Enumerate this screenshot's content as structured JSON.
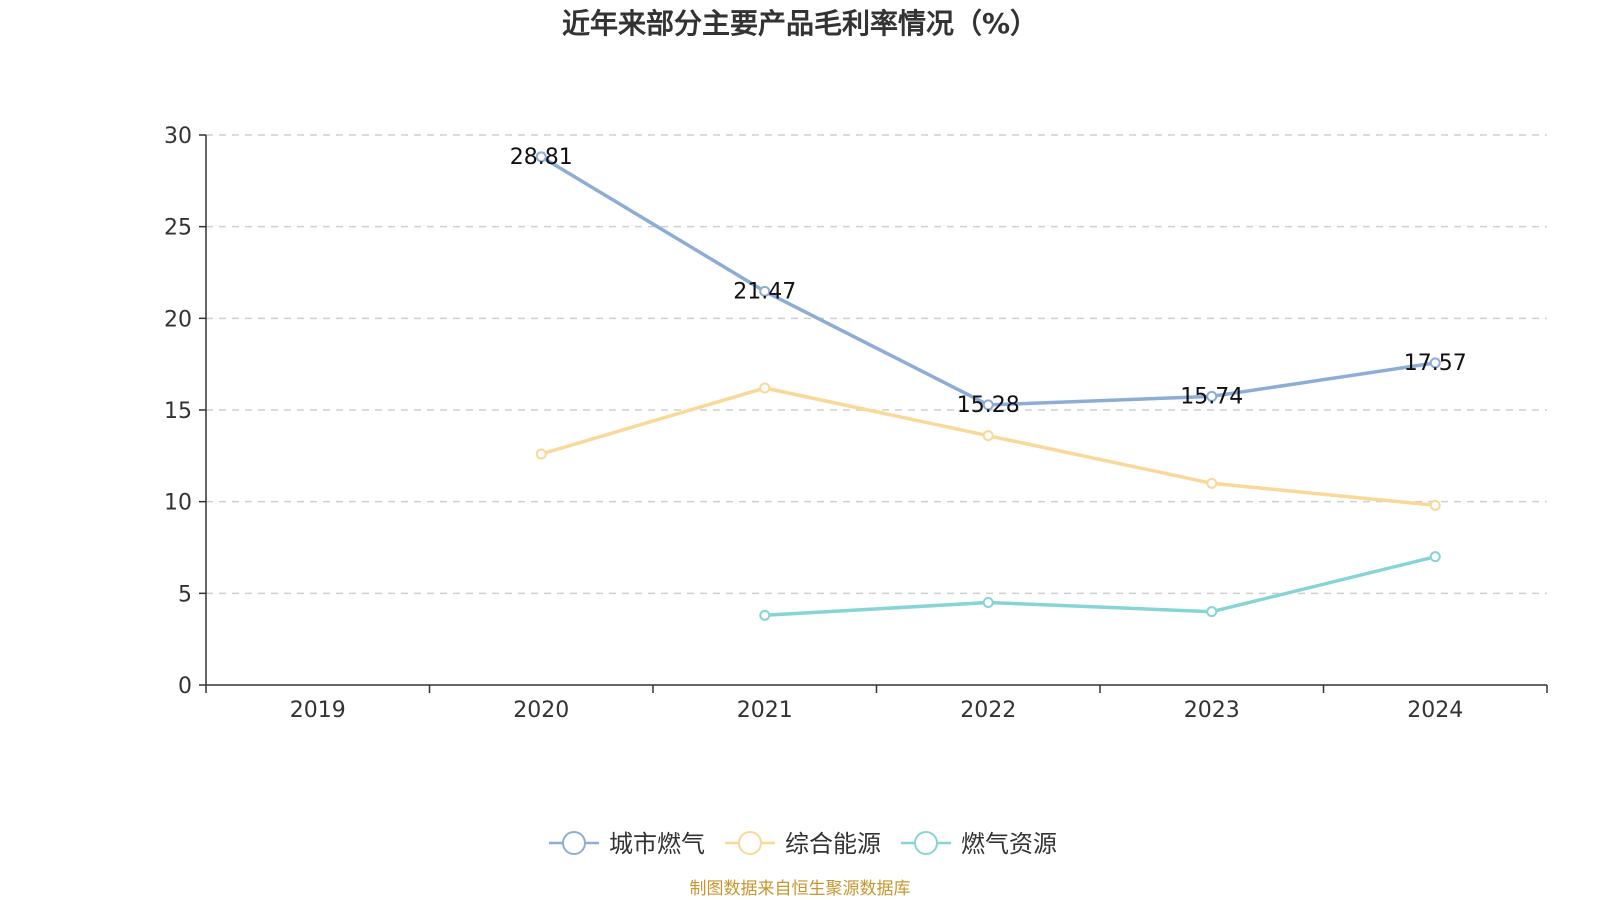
{
  "chart_data": {
    "type": "line",
    "title": "近年来部分主要产品毛利率情况（%）",
    "categories": [
      "2019",
      "2020",
      "2021",
      "2022",
      "2023",
      "2024"
    ],
    "ylim": [
      0,
      30
    ],
    "yticks": [
      0,
      5,
      10,
      15,
      20,
      25,
      30
    ],
    "grid": true,
    "legend_position": "bottom",
    "series": [
      {
        "name": "城市燃气",
        "color": "#8eadd6",
        "values": [
          null,
          28.81,
          21.47,
          15.28,
          15.74,
          17.57
        ],
        "labels": [
          null,
          "28.81",
          "21.47",
          "15.28",
          "15.74",
          "17.57"
        ]
      },
      {
        "name": "综合能源",
        "color": "#f9d898",
        "values": [
          null,
          12.6,
          16.2,
          13.6,
          11.0,
          9.8
        ],
        "labels": [
          null,
          null,
          null,
          null,
          null,
          null
        ]
      },
      {
        "name": "燃气资源",
        "color": "#86d4d6",
        "values": [
          null,
          null,
          3.8,
          4.5,
          4.0,
          7.0
        ],
        "labels": [
          null,
          null,
          null,
          null,
          null,
          null
        ]
      }
    ]
  },
  "source_note": "制图数据来自恒生聚源数据库"
}
